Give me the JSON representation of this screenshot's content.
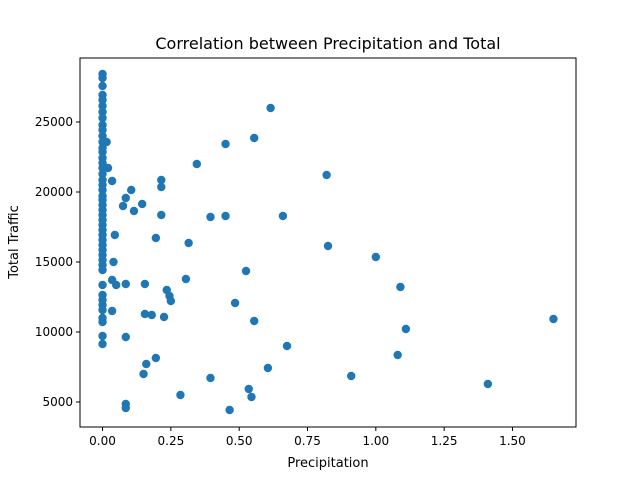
{
  "chart_data": {
    "type": "scatter",
    "title": "Correlation between Precipitation and Total",
    "x_label": "Precipitation",
    "y_label": "Total Traffic",
    "color": "#1f77b4",
    "x": [
      0,
      0,
      0,
      0,
      0,
      0,
      0,
      0,
      0,
      0,
      0,
      0,
      0,
      0,
      0,
      0,
      0,
      0,
      0,
      0,
      0,
      0,
      0,
      0,
      0,
      0,
      0,
      0,
      0,
      0,
      0,
      0,
      0,
      0,
      0,
      0,
      0,
      0,
      0,
      0,
      0,
      0,
      0,
      0,
      0,
      0,
      0.015,
      0.02,
      0.035,
      0.045,
      0.035,
      0.04,
      0.05,
      0.035,
      0.085,
      0.085,
      0.085,
      0.085,
      0.075,
      0.085,
      0.105,
      0.115,
      0.145,
      0.155,
      0.155,
      0.18,
      0.16,
      0.15,
      0.195,
      0.195,
      0.215,
      0.215,
      0.215,
      0.225,
      0.235,
      0.245,
      0.25,
      0.285,
      0.315,
      0.305,
      0.345,
      0.395,
      0.395,
      0.45,
      0.45,
      0.465,
      0.485,
      0.525,
      0.535,
      0.545,
      0.555,
      0.555,
      0.605,
      0.615,
      0.66,
      0.675,
      0.82,
      0.825,
      0.91,
      1.0,
      1.08,
      1.09,
      1.11,
      1.41,
      1.65
    ],
    "values": [
      28429,
      28143,
      27571,
      26929,
      26571,
      26143,
      25714,
      25286,
      24786,
      24429,
      24000,
      23571,
      23143,
      22857,
      22429,
      22071,
      21714,
      21286,
      20857,
      20500,
      20143,
      19714,
      19429,
      19071,
      18714,
      18357,
      18000,
      17643,
      17286,
      16929,
      16571,
      16214,
      15857,
      15500,
      15143,
      14786,
      14429,
      13357,
      12643,
      12286,
      11929,
      11571,
      11000,
      10714,
      9714,
      9143,
      23571,
      21714,
      20786,
      16929,
      13714,
      15000,
      13357,
      11500,
      13429,
      9643,
      4857,
      4571,
      19000,
      19571,
      20143,
      18643,
      19143,
      13429,
      11286,
      11214,
      7714,
      7000,
      16714,
      8143,
      20857,
      20357,
      18357,
      11071,
      13000,
      12571,
      12214,
      5500,
      16357,
      13786,
      22000,
      18214,
      6714,
      23429,
      18286,
      4429,
      12071,
      14357,
      5929,
      5357,
      23857,
      10786,
      7429,
      26000,
      18286,
      9000,
      21214,
      16143,
      6857,
      15357,
      8357,
      13214,
      10214,
      6286,
      10929
    ],
    "xlim": [
      -0.0825,
      1.7325
    ],
    "xticks": [
      {
        "value": 0,
        "label": "0.00"
      },
      {
        "value": 0.25,
        "label": "0.25"
      },
      {
        "value": 0.5,
        "label": "0.50"
      },
      {
        "value": 0.75,
        "label": "0.75"
      },
      {
        "value": 1,
        "label": "1.00"
      },
      {
        "value": 1.25,
        "label": "1.25"
      },
      {
        "value": 1.5,
        "label": "1.50"
      }
    ],
    "ylim": [
      3214,
      29571
    ],
    "yticks": [
      5000,
      10000,
      15000,
      20000,
      25000
    ]
  }
}
